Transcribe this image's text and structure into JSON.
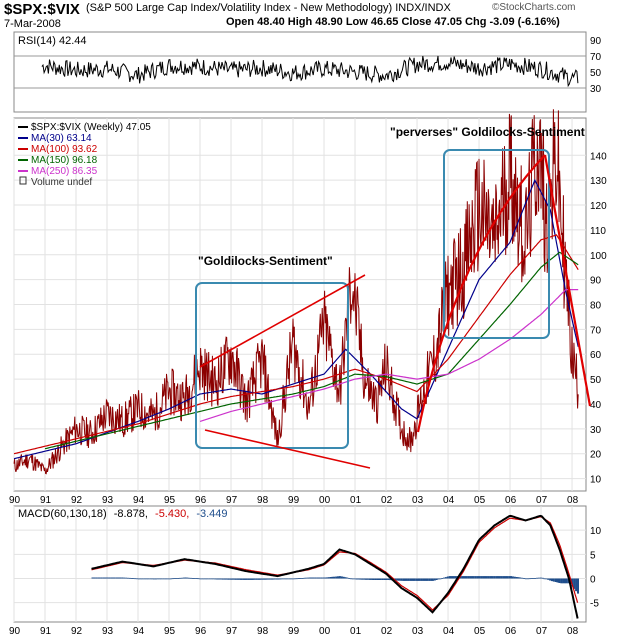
{
  "header": {
    "symbol": "$SPX:$VIX",
    "description": "(S&P 500 Large Cap Index/Volatility Index - New Methodology)  INDX/INDX",
    "date": "7-Mar-2008",
    "ohlc": "Open 48.40  High 48.90  Low 46.65  Close 47.05  Chg -3.09 (-6.16%)",
    "brand": "©StockCharts.com"
  },
  "colors": {
    "price": "#8b0000",
    "ma30": "#00008b",
    "ma100": "#cc0000",
    "ma150": "#006400",
    "ma250": "#cc33cc",
    "annotation": "#e00000",
    "box": "#3a8ab0",
    "hist": "#1f4e8c",
    "macd": "#000000",
    "signal": "#cc0000"
  },
  "rsi_panel": {
    "label": "RSI(14) 42.44",
    "ticks": [
      "90",
      "70",
      "50",
      "30"
    ]
  },
  "main_panel": {
    "legend": [
      {
        "text": "$SPX:$VIX (Weekly) 47.05",
        "color": "#000000"
      },
      {
        "text": "MA(30) 63.14",
        "color": "#00008b"
      },
      {
        "text": "MA(100) 93.62",
        "color": "#cc0000"
      },
      {
        "text": "MA(150) 96.18",
        "color": "#006400"
      },
      {
        "text": "MA(250) 86.35",
        "color": "#cc33cc"
      },
      {
        "text": "Volume undef",
        "color": "#333333"
      }
    ],
    "annotations": {
      "goldilocks": "\"Goldilocks-Sentiment\"",
      "perverses": "\"perverses\" Goldilocks-Sentiment"
    }
  },
  "macd_panel": {
    "label": "MACD(60,130,18)",
    "value1": "-8.878,",
    "value2": "-5.430,",
    "value3": "-3.449",
    "ticks": [
      "10",
      "5",
      "0",
      "-5"
    ]
  },
  "chart_data": [
    {
      "type": "line",
      "title": "RSI(14)",
      "ylim": [
        0,
        100
      ],
      "ticks": [
        90,
        70,
        50,
        30
      ],
      "x": [
        1990,
        1991,
        1992,
        1993,
        1994,
        1995,
        1996,
        1997,
        1998,
        1999,
        2000,
        2001,
        2002,
        2003,
        2004,
        2005,
        2006,
        2007,
        2008
      ],
      "values": [
        48,
        58,
        52,
        54,
        46,
        58,
        57,
        52,
        55,
        49,
        54,
        50,
        46,
        60,
        62,
        55,
        60,
        54,
        42
      ]
    },
    {
      "type": "line",
      "title": "$SPX:$VIX (Weekly)",
      "xlabel": "",
      "ylabel": "",
      "ylim": [
        5,
        155
      ],
      "yticks": [
        10,
        20,
        30,
        40,
        50,
        60,
        70,
        80,
        90,
        100,
        110,
        120,
        130,
        140
      ],
      "x_ticks": [
        "90",
        "91",
        "92",
        "93",
        "94",
        "95",
        "96",
        "97",
        "98",
        "99",
        "00",
        "01",
        "02",
        "03",
        "04",
        "05",
        "06",
        "07",
        "08"
      ],
      "series": [
        {
          "name": "$SPX:$VIX (Weekly)",
          "x": [
            1990.0,
            1990.5,
            1991.0,
            1991.5,
            1992.0,
            1992.5,
            1993.0,
            1993.5,
            1994.0,
            1994.5,
            1995.0,
            1995.5,
            1996.0,
            1996.5,
            1997.0,
            1997.5,
            1998.0,
            1998.5,
            1999.0,
            1999.5,
            2000.0,
            2000.5,
            2000.9,
            2001.3,
            2001.7,
            2002.0,
            2002.5,
            2002.8,
            2003.2,
            2003.6,
            2004.0,
            2004.5,
            2005.0,
            2005.5,
            2006.0,
            2006.5,
            2006.9,
            2007.2,
            2007.5,
            2007.8,
            2008.0,
            2008.2
          ],
          "values": [
            15,
            18,
            13,
            22,
            30,
            28,
            36,
            33,
            38,
            35,
            45,
            42,
            55,
            48,
            60,
            40,
            58,
            25,
            65,
            38,
            72,
            45,
            90,
            50,
            40,
            55,
            30,
            25,
            45,
            60,
            85,
            95,
            118,
            105,
            135,
            105,
            145,
            110,
            140,
            90,
            60,
            47
          ]
        },
        {
          "name": "MA(30)",
          "x": [
            1990,
            1992,
            1994,
            1995,
            1996,
            1997,
            1998,
            1999,
            2000,
            2000.7,
            2001.5,
            2002.5,
            2003,
            2004,
            2005,
            2006,
            2006.8,
            2007.3,
            2007.8,
            2008.2
          ],
          "values": [
            18,
            24,
            33,
            38,
            44,
            46,
            44,
            48,
            52,
            62,
            52,
            38,
            34,
            62,
            90,
            105,
            130,
            118,
            85,
            63
          ]
        },
        {
          "name": "MA(100)",
          "x": [
            1990,
            1992,
            1994,
            1995,
            1996,
            1997,
            1998,
            1999,
            2000,
            2001,
            2002,
            2003,
            2004,
            2005,
            2006,
            2007,
            2007.5,
            2008.2
          ],
          "values": [
            20,
            26,
            32,
            36,
            40,
            43,
            45,
            47,
            50,
            54,
            50,
            45,
            58,
            75,
            92,
            106,
            108,
            94
          ]
        },
        {
          "name": "MA(150)",
          "x": [
            1991,
            1993,
            1995,
            1996,
            1997,
            1998,
            1999,
            2000,
            2001,
            2002,
            2003,
            2004,
            2005,
            2006,
            2007,
            2007.6,
            2008.2
          ],
          "values": [
            22,
            28,
            34,
            37,
            40,
            42,
            44,
            47,
            52,
            51,
            48,
            52,
            66,
            80,
            95,
            101,
            96
          ]
        },
        {
          "name": "MA(250)",
          "x": [
            1996,
            1997,
            1998,
            1999,
            2000,
            2001,
            2002,
            2003,
            2004,
            2005,
            2006,
            2007,
            2007.8,
            2008.2
          ],
          "values": [
            33,
            37,
            40,
            43,
            46,
            50,
            52,
            50,
            52,
            58,
            66,
            76,
            86,
            86
          ]
        }
      ]
    },
    {
      "type": "line",
      "title": "MACD(60,130,18)",
      "ylim": [
        -9,
        15
      ],
      "yticks": [
        10,
        5,
        0,
        -5
      ],
      "x": [
        1992.5,
        1993.5,
        1994.5,
        1995.5,
        1996.5,
        1997.5,
        1998.5,
        1999.5,
        2000.0,
        2000.5,
        2001.0,
        2001.5,
        2002.0,
        2002.5,
        2003.0,
        2003.5,
        2004.0,
        2004.5,
        2005.0,
        2005.5,
        2006.0,
        2006.5,
        2007.0,
        2007.3,
        2007.6,
        2007.9,
        2008.2
      ],
      "series": [
        {
          "name": "MACD",
          "values": [
            2,
            3.5,
            2.5,
            4,
            3,
            1.5,
            0.5,
            2,
            3,
            6,
            5,
            3,
            1,
            -2,
            -4,
            -7,
            -3,
            2,
            8,
            11,
            13,
            12,
            13,
            11,
            6,
            0,
            -8.878
          ]
        },
        {
          "name": "Signal",
          "values": [
            1.8,
            3.3,
            2.7,
            3.8,
            3.2,
            1.8,
            0.7,
            1.8,
            2.8,
            5.5,
            5.2,
            3.3,
            1.3,
            -1.5,
            -3.5,
            -6.5,
            -3.5,
            1.5,
            7.5,
            10.5,
            12.5,
            12,
            12.8,
            11.5,
            7,
            1,
            -5.43
          ]
        },
        {
          "name": "Histogram",
          "values": [
            0.2,
            0.2,
            -0.2,
            0.2,
            -0.2,
            -0.3,
            -0.2,
            0.2,
            0.2,
            0.5,
            -0.2,
            -0.3,
            -0.3,
            -0.5,
            -0.5,
            -0.5,
            0.5,
            0.5,
            0.5,
            0.5,
            0.5,
            0,
            0.2,
            -0.5,
            -1,
            -1,
            -3.449
          ]
        }
      ]
    }
  ]
}
